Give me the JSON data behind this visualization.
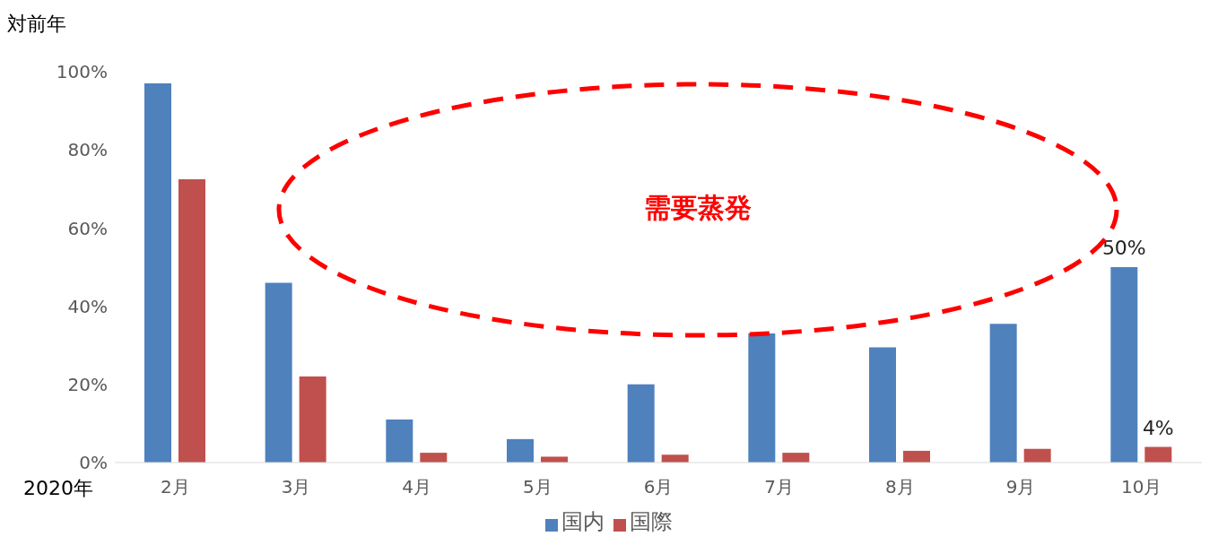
{
  "chart_data": {
    "type": "bar",
    "ylabel": "対前年",
    "xlabel": "2020年",
    "categories": [
      "2月",
      "3月",
      "4月",
      "5月",
      "6月",
      "7月",
      "8月",
      "9月",
      "10月"
    ],
    "series": [
      {
        "name": "国内",
        "color": "#4f81bd",
        "values": [
          97,
          46,
          11,
          6,
          20,
          33,
          29.5,
          35.5,
          50
        ],
        "value_labels": [
          null,
          null,
          null,
          null,
          null,
          null,
          null,
          null,
          "50%"
        ]
      },
      {
        "name": "国際",
        "color": "#c0504d",
        "values": [
          72.5,
          22,
          2.5,
          1.5,
          2,
          2.5,
          3,
          3.5,
          4
        ],
        "value_labels": [
          null,
          null,
          null,
          null,
          null,
          null,
          null,
          null,
          "4%"
        ]
      }
    ],
    "ylim": [
      0,
      100
    ],
    "yticks": [
      {
        "value": 0,
        "label": "0%"
      },
      {
        "value": 20,
        "label": "20%"
      },
      {
        "value": 40,
        "label": "40%"
      },
      {
        "value": 60,
        "label": "60%"
      },
      {
        "value": 80,
        "label": "80%"
      },
      {
        "value": 100,
        "label": "100%"
      }
    ],
    "legend": "bottom",
    "annotations": [
      "需要蒸発"
    ]
  }
}
